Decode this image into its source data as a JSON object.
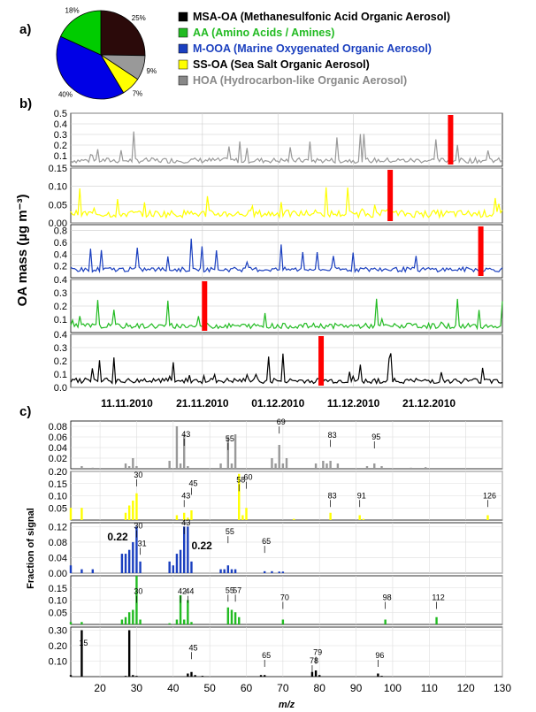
{
  "chart_data": [
    {
      "panel": "a)",
      "type": "pie",
      "slices": [
        {
          "label": "25%",
          "value": 25,
          "color": "#2b0a0a",
          "factor": "MSA-OA (Methanesulfonic Acid Organic Aerosol)"
        },
        {
          "label": "9%",
          "value": 9,
          "color": "#999999",
          "factor": "HOA (Hydrocarbon-like Organic Aerosol)"
        },
        {
          "label": "7%",
          "value": 7,
          "color": "#ffff00",
          "factor": "SS-OA (Sea Salt Organic Aerosol)"
        },
        {
          "label": "40%",
          "value": 40,
          "color": "#0000e6",
          "factor": "M-OOA (Marine Oxygenated Organic Aerosol)"
        },
        {
          "label": "18%",
          "value": 18,
          "color": "#00cc00",
          "factor": "AA (Amino Acids / Amines)"
        }
      ],
      "legend": [
        {
          "text": "MSA-OA (Methanesulfonic Acid Organic Aerosol)",
          "color": "#000000"
        },
        {
          "text": "AA (Amino Acids / Amines)",
          "color": "#22bb22"
        },
        {
          "text": "M-OOA (Marine Oxygenated Organic Aerosol)",
          "color": "#1a3fbf"
        },
        {
          "text": "SS-OA (Sea Salt Organic Aerosol)",
          "color": "#000000"
        },
        {
          "text": "HOA (Hydrocarbon-like Organic Aerosol)",
          "color": "#888888"
        }
      ],
      "legend_swatches": [
        "#000000",
        "#22bb22",
        "#1a3fbf",
        "#ffff00",
        "#888888"
      ]
    },
    {
      "panel": "b)",
      "type": "line",
      "ylabel": "OA mass (µg m⁻³)",
      "x_ticks": [
        "11.11.2010",
        "21.11.2010",
        "01.12.2010",
        "11.12.2010",
        "21.12.2010"
      ],
      "series": [
        {
          "factor": "HOA",
          "color": "#999999",
          "highlight": "#ff0000",
          "ylim": [
            0,
            0.5
          ],
          "yticks": [
            "0.5",
            "0.4",
            "0.3",
            "0.2",
            "0.1"
          ],
          "baseline": 0.03,
          "noise": 0.05,
          "highlight_x": 0.88
        },
        {
          "factor": "SS-OA",
          "color": "#ffff00",
          "highlight": "#ff0000",
          "ylim": [
            0,
            0.15
          ],
          "yticks": [
            "0.15",
            "0.10",
            "0.05",
            "0.00"
          ],
          "baseline": 0.015,
          "noise": 0.02,
          "highlight_x": 0.74
        },
        {
          "factor": "M-OOA",
          "color": "#1a3fbf",
          "highlight": "#ff0000",
          "ylim": [
            0,
            0.9
          ],
          "yticks": [
            "0.8",
            "0.6",
            "0.4",
            "0.2"
          ],
          "baseline": 0.1,
          "noise": 0.08,
          "highlight_x": 0.95
        },
        {
          "factor": "AA",
          "color": "#22bb22",
          "highlight": "#ff0000",
          "ylim": [
            0,
            0.4
          ],
          "yticks": [
            "0.4",
            "0.3",
            "0.2",
            "0.1"
          ],
          "baseline": 0.03,
          "noise": 0.04,
          "highlight_x": 0.31
        },
        {
          "factor": "MSA-OA",
          "color": "#000000",
          "highlight": "#ff0000",
          "ylim": [
            0,
            0.4
          ],
          "yticks": [
            "0.4",
            "0.3",
            "0.2",
            "0.1",
            "0.0"
          ],
          "baseline": 0.03,
          "noise": 0.04,
          "highlight_x": 0.58
        }
      ]
    },
    {
      "panel": "c)",
      "type": "bar",
      "xlabel": "m/z",
      "ylabel": "Fraction of signal",
      "xlim": [
        12,
        130
      ],
      "x_ticks": [
        "20",
        "30",
        "40",
        "50",
        "60",
        "70",
        "80",
        "90",
        "100",
        "110",
        "120",
        "130"
      ],
      "series": [
        {
          "factor": "HOA",
          "color": "#999999",
          "ylim": [
            0,
            0.09
          ],
          "yticks": [
            "0.08",
            "0.06",
            "0.04",
            "0.02"
          ],
          "bars": [
            [
              15,
              0.005
            ],
            [
              18,
              0.002
            ],
            [
              27,
              0.01
            ],
            [
              28,
              0.005
            ],
            [
              29,
              0.02
            ],
            [
              30,
              0.005
            ],
            [
              39,
              0.015
            ],
            [
              41,
              0.08
            ],
            [
              42,
              0.01
            ],
            [
              43,
              0.065
            ],
            [
              44,
              0.005
            ],
            [
              53,
              0.01
            ],
            [
              55,
              0.06
            ],
            [
              56,
              0.01
            ],
            [
              57,
              0.065
            ],
            [
              67,
              0.02
            ],
            [
              68,
              0.01
            ],
            [
              69,
              0.045
            ],
            [
              70,
              0.01
            ],
            [
              71,
              0.02
            ],
            [
              79,
              0.01
            ],
            [
              81,
              0.015
            ],
            [
              82,
              0.01
            ],
            [
              83,
              0.015
            ],
            [
              85,
              0.01
            ],
            [
              93,
              0.005
            ],
            [
              95,
              0.01
            ],
            [
              97,
              0.005
            ],
            [
              105,
              0.002
            ],
            [
              109,
              0.003
            ]
          ],
          "labels": [
            {
              "text": "43",
              "x": 43,
              "y": 0.06
            },
            {
              "text": "55",
              "x": 55,
              "y": 0.052
            },
            {
              "text": "69",
              "x": 69,
              "y": 0.083
            },
            {
              "text": "83",
              "x": 83,
              "y": 0.058
            },
            {
              "text": "95",
              "x": 95,
              "y": 0.055
            }
          ]
        },
        {
          "factor": "SS-OA",
          "color": "#ffff00",
          "ylim": [
            0,
            0.2
          ],
          "yticks": [
            "0.20",
            "0.15",
            "0.10",
            "0.05"
          ],
          "bars": [
            [
              12,
              0.05
            ],
            [
              15,
              0.05
            ],
            [
              27,
              0.03
            ],
            [
              28,
              0.06
            ],
            [
              29,
              0.08
            ],
            [
              30,
              0.11
            ],
            [
              41,
              0.02
            ],
            [
              43,
              0.03
            ],
            [
              44,
              0.01
            ],
            [
              45,
              0.04
            ],
            [
              58,
              0.19
            ],
            [
              59,
              0.02
            ],
            [
              60,
              0.05
            ],
            [
              73,
              0.005
            ],
            [
              83,
              0.03
            ],
            [
              91,
              0.02
            ],
            [
              92,
              0.005
            ],
            [
              126,
              0.02
            ]
          ],
          "labels": [
            {
              "text": "30",
              "x": 30,
              "y": 0.175
            },
            {
              "text": "43",
              "x": 43,
              "y": 0.09
            },
            {
              "text": "45",
              "x": 45,
              "y": 0.14
            },
            {
              "text": "58",
              "x": 58,
              "y": 0.155
            },
            {
              "text": "60",
              "x": 60,
              "y": 0.165
            },
            {
              "text": "83",
              "x": 83,
              "y": 0.09
            },
            {
              "text": "91",
              "x": 91,
              "y": 0.09
            },
            {
              "text": "126",
              "x": 126,
              "y": 0.09
            }
          ]
        },
        {
          "factor": "M-OOA",
          "color": "#1a3fbf",
          "ylim": [
            0,
            0.13
          ],
          "yticks": [
            "0.12",
            "0.08",
            "0.04",
            "0.00"
          ],
          "bars": [
            [
              12,
              0.02
            ],
            [
              15,
              0.01
            ],
            [
              18,
              0.01
            ],
            [
              26,
              0.05
            ],
            [
              27,
              0.05
            ],
            [
              28,
              0.06
            ],
            [
              29,
              0.08
            ],
            [
              30,
              0.12
            ],
            [
              31,
              0.03
            ],
            [
              39,
              0.03
            ],
            [
              40,
              0.02
            ],
            [
              41,
              0.05
            ],
            [
              42,
              0.06
            ],
            [
              43,
              0.12
            ],
            [
              44,
              0.12
            ],
            [
              45,
              0.03
            ],
            [
              53,
              0.01
            ],
            [
              54,
              0.01
            ],
            [
              55,
              0.02
            ],
            [
              56,
              0.01
            ],
            [
              57,
              0.01
            ],
            [
              65,
              0.005
            ],
            [
              67,
              0.005
            ],
            [
              69,
              0.004
            ],
            [
              70,
              0.004
            ]
          ],
          "labels": [
            {
              "text": "30",
              "x": 30,
              "y": 0.115
            },
            {
              "text": "31",
              "x": 31,
              "y": 0.07
            },
            {
              "text": "43",
              "x": 43,
              "y": 0.125
            },
            {
              "text": "55",
              "x": 55,
              "y": 0.1
            },
            {
              "text": "65",
              "x": 65,
              "y": 0.075
            }
          ],
          "annotations": [
            "0.22",
            "0.22"
          ]
        },
        {
          "factor": "AA",
          "color": "#22bb22",
          "ylim": [
            0,
            0.2
          ],
          "yticks": [
            "0.15",
            "0.10",
            "0.05"
          ],
          "bars": [
            [
              12,
              0.01
            ],
            [
              15,
              0.01
            ],
            [
              26,
              0.02
            ],
            [
              27,
              0.03
            ],
            [
              28,
              0.05
            ],
            [
              29,
              0.06
            ],
            [
              30,
              0.2
            ],
            [
              31,
              0.02
            ],
            [
              39,
              0.005
            ],
            [
              41,
              0.02
            ],
            [
              42,
              0.12
            ],
            [
              43,
              0.02
            ],
            [
              44,
              0.1
            ],
            [
              45,
              0.01
            ],
            [
              55,
              0.07
            ],
            [
              56,
              0.06
            ],
            [
              57,
              0.05
            ],
            [
              58,
              0.03
            ],
            [
              70,
              0.02
            ],
            [
              98,
              0.02
            ],
            [
              112,
              0.03
            ]
          ],
          "labels": [
            {
              "text": "30",
              "x": 30,
              "y": 0.125
            },
            {
              "text": "42",
              "x": 42,
              "y": 0.125
            },
            {
              "text": "44",
              "x": 44,
              "y": 0.125
            },
            {
              "text": "55",
              "x": 55,
              "y": 0.13
            },
            {
              "text": "57",
              "x": 57,
              "y": 0.13
            },
            {
              "text": "70",
              "x": 70,
              "y": 0.1
            },
            {
              "text": "98",
              "x": 98,
              "y": 0.1
            },
            {
              "text": "112",
              "x": 112,
              "y": 0.1
            }
          ]
        },
        {
          "factor": "MSA-OA",
          "color": "#000000",
          "ylim": [
            0,
            0.32
          ],
          "yticks": [
            "0.30",
            "0.20",
            "0.10"
          ],
          "bars": [
            [
              12,
              0.01
            ],
            [
              15,
              0.3
            ],
            [
              27,
              0.005
            ],
            [
              28,
              0.3
            ],
            [
              29,
              0.01
            ],
            [
              30,
              0.005
            ],
            [
              44,
              0.02
            ],
            [
              45,
              0.03
            ],
            [
              46,
              0.01
            ],
            [
              48,
              0.005
            ],
            [
              64,
              0.01
            ],
            [
              65,
              0.01
            ],
            [
              78,
              0.03
            ],
            [
              79,
              0.04
            ],
            [
              80,
              0.01
            ],
            [
              96,
              0.02
            ],
            [
              97,
              0.005
            ]
          ],
          "labels": [
            {
              "text": "15",
              "x": 15,
              "y": 0.2
            },
            {
              "text": "45",
              "x": 45,
              "y": 0.17
            },
            {
              "text": "65",
              "x": 65,
              "y": 0.12
            },
            {
              "text": "78",
              "x": 78,
              "y": 0.085
            },
            {
              "text": "79",
              "x": 79,
              "y": 0.14
            },
            {
              "text": "96",
              "x": 96,
              "y": 0.12
            }
          ]
        }
      ]
    }
  ]
}
